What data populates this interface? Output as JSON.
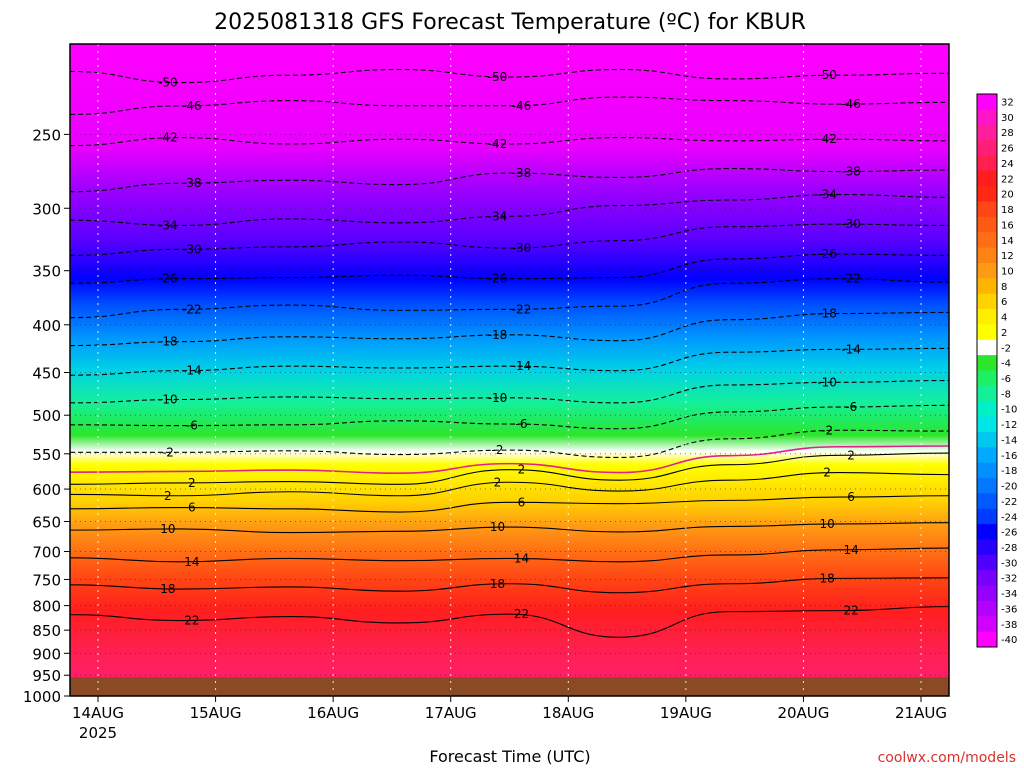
{
  "chart_data": {
    "type": "heatmap",
    "title": "2025081318 GFS Forecast Temperature (ºC) for KBUR",
    "xlabel": "Forecast Time (UTC)",
    "ylabel": "",
    "credit": "coolwx.com/models",
    "y_axis_scale": "log",
    "y_axis_inverted": true,
    "ylim": [
      1000,
      200
    ],
    "x_ticks": [
      "14AUG",
      "15AUG",
      "16AUG",
      "17AUG",
      "18AUG",
      "19AUG",
      "20AUG",
      "21AUG"
    ],
    "x_tick_year": "2025",
    "y_ticks": [
      "250",
      "300",
      "350",
      "400",
      "450",
      "500",
      "550",
      "600",
      "650",
      "700",
      "750",
      "800",
      "850",
      "900",
      "950",
      "1000"
    ],
    "surface_pressure_hpa": 955,
    "contour_interval_c": 4,
    "freezing_line_color": "#e0208c",
    "below_ground_color": "#8b4a26",
    "colorbar": {
      "labels": [
        "32",
        "30",
        "28",
        "26",
        "24",
        "22",
        "20",
        "18",
        "16",
        "14",
        "12",
        "10",
        "8",
        "6",
        "4",
        "2",
        "-2",
        "-4",
        "-6",
        "-8",
        "-10",
        "-12",
        "-14",
        "-16",
        "-18",
        "-20",
        "-22",
        "-24",
        "-26",
        "-28",
        "-30",
        "-32",
        "-34",
        "-36",
        "-38",
        "-40"
      ],
      "colors": [
        "#ff00ff",
        "#ff14c8",
        "#ff1e9c",
        "#ff1e78",
        "#ff2050",
        "#ff1e1e",
        "#ff2814",
        "#ff4614",
        "#ff5a14",
        "#ff6e14",
        "#ff8214",
        "#ff9a14",
        "#ffb400",
        "#ffd200",
        "#ffee00",
        "#ffff00",
        "#ffffff",
        "#2ce62c",
        "#1ef064",
        "#14f09a",
        "#00f0c8",
        "#00e6e6",
        "#00c8f0",
        "#00aaff",
        "#0090ff",
        "#0078ff",
        "#005aff",
        "#003cff",
        "#0000ff",
        "#2800ff",
        "#5000ff",
        "#7800ff",
        "#9600ff",
        "#b400ff",
        "#d200ff",
        "#ff00ff"
      ]
    },
    "contours": [
      {
        "label": "-50",
        "p": [
          214,
          220,
          216,
          213,
          217,
          213,
          218,
          216,
          215
        ]
      },
      {
        "label": "-46",
        "p": [
          238,
          233,
          230,
          233,
          233,
          228,
          230,
          232,
          231
        ]
      },
      {
        "label": "-42",
        "p": [
          257,
          252,
          256,
          253,
          256,
          252,
          254,
          253,
          254
        ]
      },
      {
        "label": "-38",
        "p": [
          288,
          282,
          280,
          283,
          275,
          278,
          272,
          274,
          273
        ]
      },
      {
        "label": "-34",
        "p": [
          309,
          313,
          308,
          311,
          306,
          298,
          294,
          290,
          292
        ]
      },
      {
        "label": "-30",
        "p": [
          337,
          332,
          330,
          326,
          331,
          325,
          314,
          312,
          313
        ]
      },
      {
        "label": "-26",
        "p": [
          361,
          357,
          356,
          354,
          357,
          356,
          340,
          336,
          337
        ]
      },
      {
        "label": "-22",
        "p": [
          393,
          385,
          381,
          386,
          385,
          382,
          361,
          357,
          360
        ]
      },
      {
        "label": "-18",
        "p": [
          421,
          417,
          412,
          414,
          410,
          416,
          395,
          389,
          388
        ]
      },
      {
        "label": "-14",
        "p": [
          453,
          448,
          443,
          445,
          443,
          448,
          428,
          425,
          424
        ]
      },
      {
        "label": "-10",
        "p": [
          485,
          481,
          478,
          480,
          479,
          485,
          464,
          461,
          459
        ]
      },
      {
        "label": "-6",
        "p": [
          512,
          513,
          512,
          507,
          511,
          517,
          496,
          490,
          488
        ]
      },
      {
        "label": "-2",
        "p": [
          548,
          548,
          546,
          551,
          545,
          555,
          530,
          519,
          520
        ]
      },
      {
        "label": "2",
        "p": [
          593,
          591,
          589,
          593,
          572,
          587,
          565,
          552,
          549
        ]
      },
      {
        "label": "2",
        "p": [
          608,
          610,
          604,
          610,
          590,
          603,
          587,
          576,
          579
        ]
      },
      {
        "label": "6",
        "p": [
          630,
          628,
          630,
          635,
          620,
          622,
          617,
          612,
          610
        ]
      },
      {
        "label": "10",
        "p": [
          664,
          662,
          668,
          666,
          659,
          667,
          658,
          654,
          652
        ]
      },
      {
        "label": "14",
        "p": [
          711,
          718,
          712,
          716,
          712,
          718,
          706,
          697,
          694
        ]
      },
      {
        "label": "18",
        "p": [
          760,
          768,
          764,
          772,
          758,
          775,
          758,
          748,
          747
        ]
      },
      {
        "label": "22",
        "p": [
          818,
          830,
          822,
          835,
          817,
          865,
          812,
          810,
          802
        ]
      }
    ]
  }
}
